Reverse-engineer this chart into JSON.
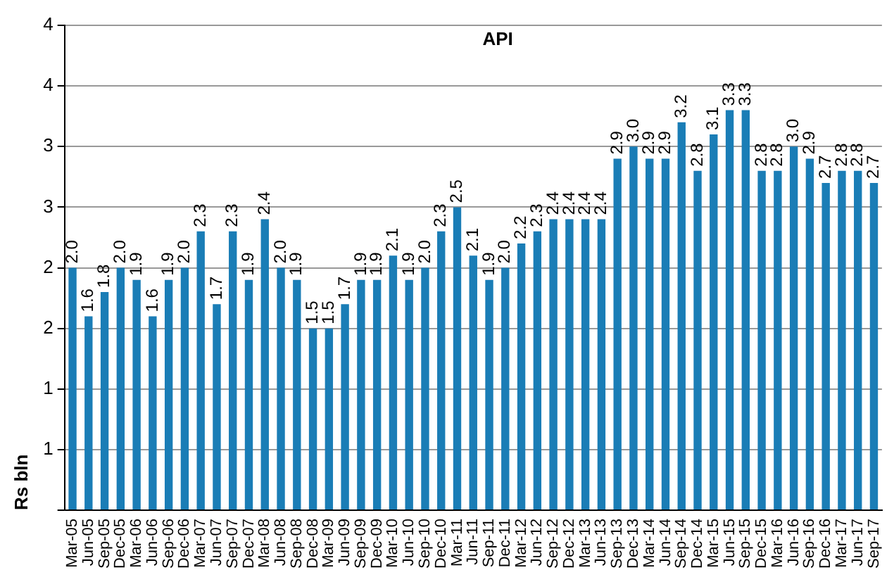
{
  "chart_data": {
    "type": "bar",
    "title": "API",
    "ylabel": "Rs bln",
    "categories": [
      "Mar-05",
      "Jun-05",
      "Sep-05",
      "Dec-05",
      "Mar-06",
      "Jun-06",
      "Sep-06",
      "Dec-06",
      "Mar-07",
      "Jun-07",
      "Sep-07",
      "Dec-07",
      "Mar-08",
      "Jun-08",
      "Sep-08",
      "Dec-08",
      "Mar-09",
      "Jun-09",
      "Sep-09",
      "Dec-09",
      "Mar-10",
      "Jun-10",
      "Sep-10",
      "Dec-10",
      "Mar-11",
      "Jun-11",
      "Sep-11",
      "Dec-11",
      "Mar-12",
      "Jun-12",
      "Sep-12",
      "Dec-12",
      "Mar-13",
      "Jun-13",
      "Sep-13",
      "Dec-13",
      "Mar-14",
      "Jun-14",
      "Sep-14",
      "Dec-14",
      "Mar-15",
      "Jun-15",
      "Sep-15",
      "Dec-15",
      "Mar-16",
      "Jun-16",
      "Sep-16",
      "Dec-16",
      "Mar-17",
      "Jun-17",
      "Sep-17"
    ],
    "values": [
      2.0,
      1.6,
      1.8,
      2.0,
      1.9,
      1.6,
      1.9,
      2.0,
      2.3,
      1.7,
      2.3,
      1.9,
      2.4,
      2.0,
      1.9,
      1.5,
      1.5,
      1.7,
      1.9,
      1.9,
      2.1,
      1.9,
      2.0,
      2.3,
      2.5,
      2.1,
      1.9,
      2.0,
      2.2,
      2.3,
      2.4,
      2.4,
      2.4,
      2.4,
      2.9,
      3.0,
      2.9,
      2.9,
      3.2,
      2.8,
      3.1,
      3.3,
      3.3,
      2.8,
      2.8,
      3.0,
      2.9,
      2.7,
      2.8,
      2.8,
      2.7
    ],
    "color": "#1a7db6",
    "ylim": [
      0,
      4
    ],
    "yticks": [
      {
        "value": 0,
        "label": null
      },
      {
        "value": 0.5,
        "label": "1"
      },
      {
        "value": 1,
        "label": "1"
      },
      {
        "value": 1.5,
        "label": "2"
      },
      {
        "value": 2,
        "label": "2"
      },
      {
        "value": 2.5,
        "label": "3"
      },
      {
        "value": 3,
        "label": "3"
      },
      {
        "value": 3.5,
        "label": "4"
      },
      {
        "value": 4,
        "label": "4"
      }
    ],
    "value_labels": [
      "2.0",
      "1.6",
      "1.8",
      "2.0",
      "1.9",
      "1.6",
      "1.9",
      "2.0",
      "2.3",
      "1.7",
      "2.3",
      "1.9",
      "2.4",
      "2.0",
      "1.9",
      "1.5",
      "1.5",
      "1.7",
      "1.9",
      "1.9",
      "2.1",
      "1.9",
      "2.0",
      "2.3",
      "2.5",
      "2.1",
      "1.9",
      "2.0",
      "2.2",
      "2.3",
      "2.4",
      "2.4",
      "2.4",
      "2.4",
      "2.9",
      "3.0",
      "2.9",
      "2.9",
      "3.2",
      "2.8",
      "3.1",
      "3.3",
      "3.3",
      "2.8",
      "2.8",
      "3.0",
      "2.9",
      "2.7",
      "2.8",
      "2.8",
      "2.7"
    ],
    "grid": "y"
  }
}
